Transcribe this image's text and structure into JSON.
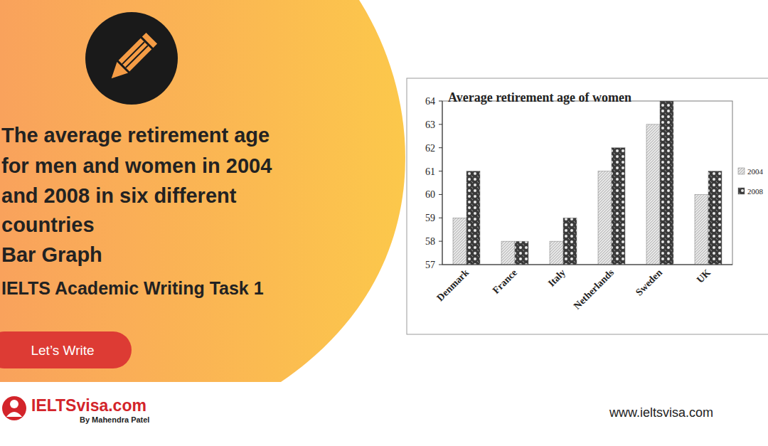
{
  "chart_data": {
    "type": "bar",
    "title": "Average retirement age of women",
    "categories": [
      "Denmark",
      "France",
      "Italy",
      "Netherlands",
      "Sweden",
      "UK"
    ],
    "series": [
      {
        "name": "2004",
        "color": "#b8b8b8",
        "values": [
          59,
          58,
          58,
          61,
          63,
          60
        ]
      },
      {
        "name": "2008",
        "color": "#3a3a3a",
        "values": [
          61,
          58,
          59,
          62,
          64,
          61
        ]
      }
    ],
    "ylim": [
      57,
      64
    ],
    "yticks": [
      57,
      58,
      59,
      60,
      61,
      62,
      63,
      64
    ],
    "grid": false,
    "legend": "right"
  },
  "banner": {
    "title_lines": [
      "The average retirement age",
      "for men and women in 2004",
      "and 2008 in six different",
      "countries",
      "Bar Graph"
    ],
    "subtitle": "IELTS Academic Writing Task 1",
    "button": "Let’s Write",
    "logo": "IELTSvisa.com",
    "logo_by": "By Mahendra Patel",
    "website": "www.ieltsvisa.com"
  }
}
